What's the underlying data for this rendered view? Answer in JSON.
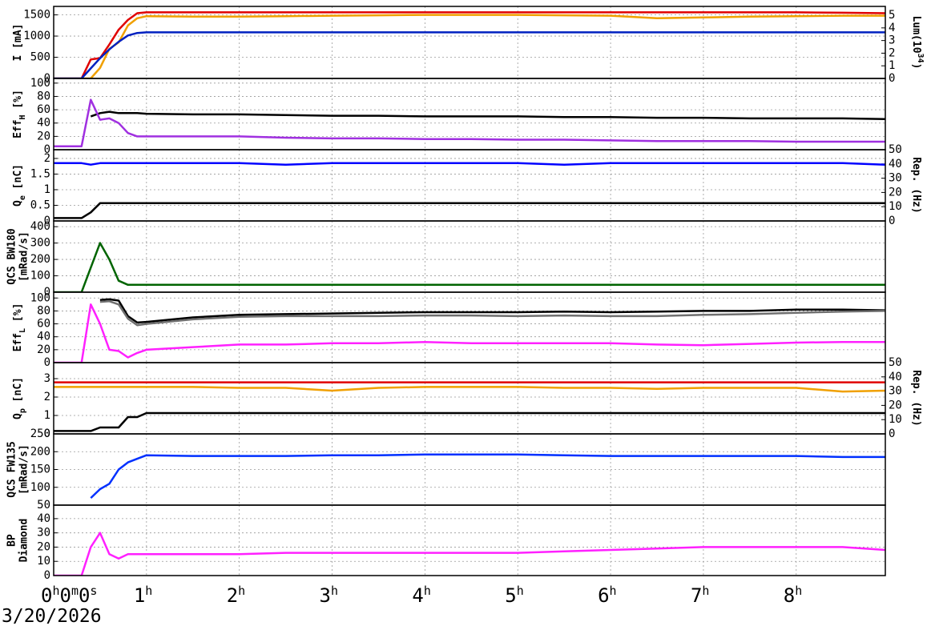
{
  "time": {
    "x": [
      0,
      0.1,
      0.2,
      0.3,
      0.4,
      0.5,
      0.6,
      0.7,
      0.8,
      0.9,
      1,
      1.5,
      2,
      2.5,
      3,
      3.5,
      4,
      4.5,
      5,
      5.5,
      6,
      6.5,
      7,
      7.5,
      8,
      8.5,
      8.96
    ],
    "xlim": [
      0,
      8.96
    ],
    "xticks": [
      {
        "value": 0,
        "label": "0h0m0s"
      },
      {
        "value": 1,
        "label": "1h"
      },
      {
        "value": 2,
        "label": "2h"
      },
      {
        "value": 3,
        "label": "3h"
      },
      {
        "value": 4,
        "label": "4h"
      },
      {
        "value": 5,
        "label": "5h"
      },
      {
        "value": 6,
        "label": "6h"
      },
      {
        "value": 7,
        "label": "7h"
      },
      {
        "value": 8,
        "label": "8h"
      }
    ],
    "date": "3/20/2026"
  },
  "chart_data": [
    {
      "type": "line",
      "ylabel": [
        [
          {
            "text": "I [mA]"
          }
        ]
      ],
      "ylim": [
        0,
        1700
      ],
      "yticks": [
        0,
        500,
        1000,
        1500
      ],
      "y2label": [
        [
          {
            "text": "Lum(10"
          },
          {
            "text": "34",
            "shift": "sup"
          },
          {
            "text": ")"
          }
        ]
      ],
      "y2lim": [
        0,
        5.7
      ],
      "y2ticks": [
        0,
        1,
        2,
        3,
        4,
        5
      ],
      "series": [
        {
          "color": "#e00000",
          "values": [
            0,
            0,
            0,
            0,
            450,
            480,
            800,
            1150,
            1380,
            1540,
            1560,
            1560,
            1560,
            1560,
            1560,
            1560,
            1560,
            1560,
            1560,
            1560,
            1560,
            1560,
            1560,
            1560,
            1560,
            1550,
            1540
          ]
        },
        {
          "color": "#f0a000",
          "values": [
            0,
            0,
            0,
            0,
            0,
            250,
            700,
            850,
            1250,
            1420,
            1470,
            1460,
            1460,
            1470,
            1480,
            1490,
            1500,
            1500,
            1500,
            1490,
            1480,
            1420,
            1440,
            1460,
            1470,
            1480,
            1480
          ]
        },
        {
          "color": "#0020c0",
          "axis": "y2",
          "values": [
            0,
            0,
            0,
            0,
            0.8,
            1.6,
            2.3,
            2.9,
            3.4,
            3.6,
            3.65,
            3.65,
            3.65,
            3.65,
            3.65,
            3.65,
            3.65,
            3.65,
            3.65,
            3.65,
            3.65,
            3.65,
            3.65,
            3.65,
            3.65,
            3.65,
            3.65
          ]
        }
      ]
    },
    {
      "type": "line",
      "ylabel": [
        [
          {
            "text": "Eff"
          },
          {
            "text": "H",
            "shift": "sub"
          },
          {
            "text": " [%]"
          }
        ]
      ],
      "ylim": [
        0,
        107
      ],
      "yticks": [
        0,
        20,
        40,
        60,
        80,
        100
      ],
      "series": [
        {
          "color": "#000000",
          "values": [
            null,
            null,
            null,
            null,
            50,
            55,
            57,
            55,
            55,
            55,
            54,
            53,
            53,
            52,
            51,
            51,
            50,
            50,
            50,
            49,
            49,
            48,
            48,
            47,
            47,
            47,
            46
          ]
        },
        {
          "color": "#a030e0",
          "values": [
            5,
            5,
            5,
            5,
            75,
            45,
            47,
            40,
            25,
            20,
            20,
            20,
            20,
            18,
            17,
            17,
            16,
            16,
            15,
            15,
            14,
            13,
            13,
            13,
            12,
            12,
            12
          ]
        }
      ]
    },
    {
      "type": "line",
      "ylabel": [
        [
          {
            "text": "Q"
          },
          {
            "text": "e",
            "shift": "sub"
          },
          {
            "text": " [nC]"
          }
        ]
      ],
      "ylim": [
        0,
        2.28
      ],
      "yticks": [
        0,
        0.5,
        1,
        1.5,
        2
      ],
      "y2label": [
        [
          {
            "text": "Rep. (Hz)"
          }
        ]
      ],
      "y2lim": [
        0,
        50
      ],
      "y2ticks": [
        0,
        10,
        20,
        30,
        40,
        50
      ],
      "series": [
        {
          "color": "#0000ff",
          "values": [
            1.85,
            1.85,
            1.85,
            1.85,
            1.8,
            1.85,
            1.85,
            1.85,
            1.85,
            1.85,
            1.85,
            1.85,
            1.85,
            1.8,
            1.85,
            1.85,
            1.85,
            1.85,
            1.85,
            1.8,
            1.85,
            1.85,
            1.85,
            1.85,
            1.85,
            1.85,
            1.8
          ]
        },
        {
          "color": "#000000",
          "axis": "y2",
          "values": [
            2,
            2,
            2,
            2,
            6,
            12.5,
            12.5,
            12.5,
            12.5,
            12.5,
            12.5,
            12.5,
            12.5,
            12.5,
            12.5,
            12.5,
            12.5,
            12.5,
            12.5,
            12.5,
            12.5,
            12.5,
            12.5,
            12.5,
            12.5,
            12.5,
            12.5
          ]
        }
      ]
    },
    {
      "type": "line",
      "ylabel": [
        [
          {
            "text": "QCS BW180"
          }
        ],
        [
          {
            "text": "[mRad/s]"
          }
        ]
      ],
      "ylim": [
        0,
        435
      ],
      "yticks": [
        0,
        100,
        200,
        300,
        400
      ],
      "series": [
        {
          "color": "#006400",
          "values": [
            0,
            0,
            0,
            0,
            150,
            300,
            200,
            70,
            45,
            45,
            45,
            45,
            45,
            45,
            45,
            45,
            45,
            45,
            45,
            45,
            45,
            45,
            45,
            45,
            45,
            45,
            45
          ]
        }
      ]
    },
    {
      "type": "line",
      "ylabel": [
        [
          {
            "text": "Eff"
          },
          {
            "text": "L",
            "shift": "sub"
          },
          {
            "text": " [%]"
          }
        ]
      ],
      "ylim": [
        0,
        109
      ],
      "yticks": [
        0,
        20,
        40,
        60,
        80,
        100
      ],
      "series": [
        {
          "color": "#000000",
          "values": [
            null,
            null,
            null,
            null,
            null,
            97,
            98,
            96,
            72,
            62,
            63,
            70,
            74,
            75,
            76,
            77,
            78,
            78,
            78,
            79,
            78,
            79,
            80,
            80,
            82,
            82,
            81
          ]
        },
        {
          "color": "#707070",
          "values": [
            null,
            null,
            null,
            null,
            null,
            94,
            95,
            90,
            68,
            58,
            60,
            67,
            71,
            72,
            72,
            72,
            73,
            73,
            72,
            73,
            72,
            72,
            74,
            75,
            77,
            79,
            80
          ]
        },
        {
          "color": "#ff20ff",
          "values": [
            0,
            0,
            0,
            0,
            90,
            60,
            20,
            18,
            8,
            15,
            20,
            24,
            28,
            28,
            30,
            30,
            32,
            30,
            30,
            30,
            30,
            28,
            27,
            29,
            31,
            32,
            32
          ]
        }
      ]
    },
    {
      "type": "line",
      "ylabel": [
        [
          {
            "text": "Q"
          },
          {
            "text": "p",
            "shift": "sub"
          },
          {
            "text": " [nC]"
          }
        ]
      ],
      "ylim": [
        0,
        3.87
      ],
      "yticks": [
        0,
        1,
        2,
        3
      ],
      "y2label": [
        [
          {
            "text": "Rep. (Hz)"
          }
        ]
      ],
      "y2lim": [
        0,
        50
      ],
      "y2ticks": [
        0,
        10,
        20,
        30,
        40,
        50
      ],
      "series": [
        {
          "color": "#e00000",
          "values": [
            2.8,
            2.8,
            2.8,
            2.8,
            2.8,
            2.8,
            2.8,
            2.8,
            2.8,
            2.8,
            2.8,
            2.8,
            2.8,
            2.8,
            2.8,
            2.8,
            2.8,
            2.8,
            2.8,
            2.8,
            2.8,
            2.8,
            2.8,
            2.8,
            2.8,
            2.8,
            2.8
          ]
        },
        {
          "color": "#f0a000",
          "values": [
            2.55,
            2.55,
            2.55,
            2.55,
            2.55,
            2.55,
            2.55,
            2.55,
            2.55,
            2.55,
            2.55,
            2.55,
            2.5,
            2.5,
            2.35,
            2.5,
            2.55,
            2.55,
            2.55,
            2.5,
            2.5,
            2.45,
            2.5,
            2.5,
            2.5,
            2.3,
            2.35
          ]
        },
        {
          "color": "#000000",
          "axis": "y2",
          "values": [
            2,
            2,
            2,
            2,
            2,
            4.5,
            4.5,
            4.5,
            11.8,
            11.8,
            14.6,
            14.6,
            14.6,
            14.6,
            14.6,
            14.6,
            14.6,
            14.6,
            14.6,
            14.6,
            14.6,
            14.6,
            14.6,
            14.6,
            14.6,
            14.6,
            14.6
          ]
        }
      ]
    },
    {
      "type": "line",
      "ylabel": [
        [
          {
            "text": "QCS FW135"
          }
        ],
        [
          {
            "text": "[mRad/s]"
          }
        ]
      ],
      "ylim": [
        50,
        250
      ],
      "yticks": [
        50,
        100,
        150,
        200,
        250
      ],
      "series": [
        {
          "color": "#0030ff",
          "values": [
            null,
            null,
            null,
            null,
            70,
            95,
            110,
            150,
            170,
            180,
            190,
            188,
            188,
            188,
            190,
            190,
            192,
            192,
            192,
            190,
            188,
            188,
            188,
            188,
            188,
            185,
            185
          ]
        }
      ]
    },
    {
      "type": "line",
      "ylabel": [
        [
          {
            "text": "BP"
          }
        ],
        [
          {
            "text": "Diamond"
          }
        ]
      ],
      "ylim": [
        0,
        49.5
      ],
      "yticks": [
        0,
        10,
        20,
        30,
        40
      ],
      "series": [
        {
          "color": "#ff20ff",
          "values": [
            0,
            0,
            0,
            0,
            20,
            30,
            15,
            12,
            15,
            15,
            15,
            15,
            15,
            16,
            16,
            16,
            16,
            16,
            16,
            17,
            18,
            19,
            20,
            20,
            20,
            20,
            18
          ]
        }
      ]
    }
  ]
}
